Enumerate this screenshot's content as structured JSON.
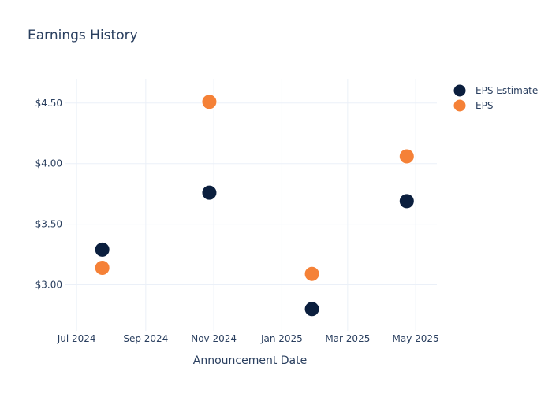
{
  "chart_data": {
    "type": "scatter",
    "title": "Earnings History",
    "xlabel": "Announcement Date",
    "ylabel": "",
    "x_axis": {
      "type": "date",
      "range": [
        "2024-06-21",
        "2025-05-20"
      ],
      "ticks": [
        {
          "date": "2024-07-01",
          "label": "Jul 2024"
        },
        {
          "date": "2024-09-01",
          "label": "Sep 2024"
        },
        {
          "date": "2024-11-01",
          "label": "Nov 2024"
        },
        {
          "date": "2025-01-01",
          "label": "Jan 2025"
        },
        {
          "date": "2025-03-01",
          "label": "Mar 2025"
        },
        {
          "date": "2025-05-01",
          "label": "May 2025"
        }
      ]
    },
    "y_axis": {
      "range": [
        2.62,
        4.7
      ],
      "ticks": [
        {
          "value": 3.0,
          "label": "$3.00"
        },
        {
          "value": 3.5,
          "label": "$3.50"
        },
        {
          "value": 4.0,
          "label": "$4.00"
        },
        {
          "value": 4.5,
          "label": "$4.50"
        }
      ]
    },
    "grid": true,
    "legend_position": "top-right",
    "series": [
      {
        "name": "EPS Estimate",
        "color": "#0b1f3e",
        "points": [
          {
            "x": "2024-07-24",
            "y": 3.29
          },
          {
            "x": "2024-10-28",
            "y": 3.76
          },
          {
            "x": "2025-01-28",
            "y": 2.8
          },
          {
            "x": "2025-04-23",
            "y": 3.69
          }
        ]
      },
      {
        "name": "EPS",
        "color": "#f58137",
        "points": [
          {
            "x": "2024-07-24",
            "y": 3.14
          },
          {
            "x": "2024-10-28",
            "y": 4.51
          },
          {
            "x": "2025-01-28",
            "y": 3.09
          },
          {
            "x": "2025-04-23",
            "y": 4.06
          }
        ]
      }
    ]
  }
}
